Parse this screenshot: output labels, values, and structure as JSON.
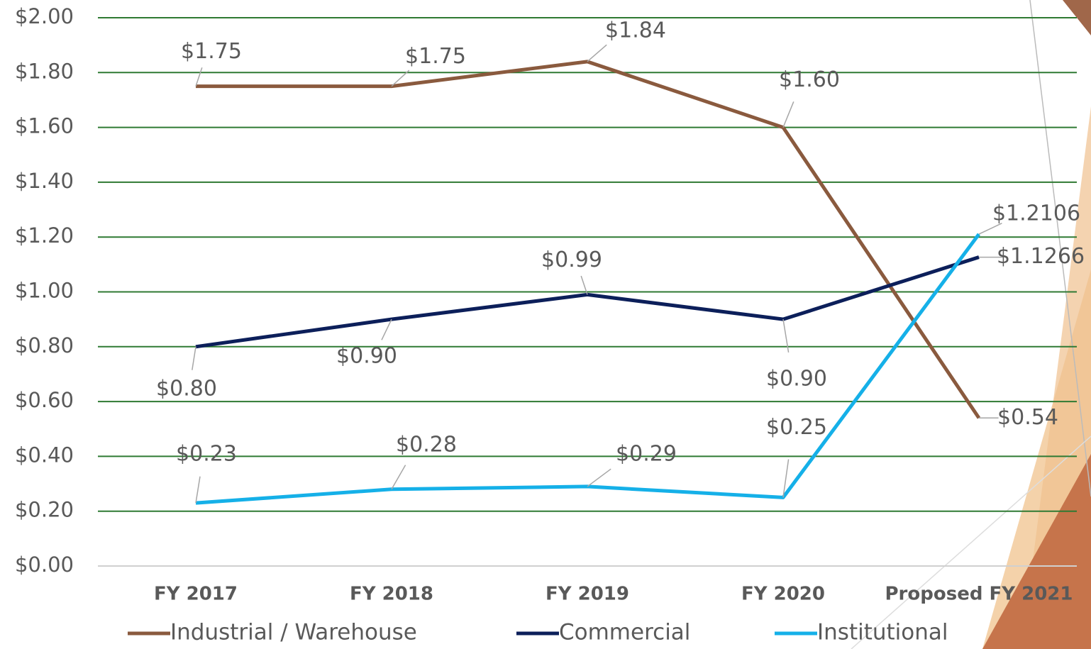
{
  "chart_data": {
    "type": "line",
    "categories": [
      "FY 2017",
      "FY 2018",
      "FY 2019",
      "FY 2020",
      "Proposed FY 2021"
    ],
    "series": [
      {
        "name": "Industrial / Warehouse",
        "color": "#8a5a3e",
        "values": [
          1.75,
          1.75,
          1.84,
          1.6,
          0.54
        ],
        "value_labels": [
          "$1.75",
          "$1.75",
          "$1.84",
          "$1.60",
          "$0.54"
        ]
      },
      {
        "name": "Commercial",
        "color": "#0c1f5a",
        "values": [
          0.8,
          0.9,
          0.99,
          0.9,
          1.1266
        ],
        "value_labels": [
          "$0.80",
          "$0.90",
          "$0.99",
          "$0.90",
          "$1.1266"
        ]
      },
      {
        "name": "Institutional",
        "color": "#15b0e8",
        "values": [
          0.23,
          0.28,
          0.29,
          0.25,
          1.2106
        ],
        "value_labels": [
          "$0.23",
          "$0.28",
          "$0.29",
          "$0.25",
          "$1.2106"
        ]
      }
    ],
    "ylim": [
      0,
      2
    ],
    "yticks": [
      {
        "value": 0,
        "label": "$0.00"
      },
      {
        "value": 0.2,
        "label": "$0.20"
      },
      {
        "value": 0.4,
        "label": "$0.40"
      },
      {
        "value": 0.6,
        "label": "$0.60"
      },
      {
        "value": 0.8,
        "label": "$0.80"
      },
      {
        "value": 1,
        "label": "$1.00"
      },
      {
        "value": 1.2,
        "label": "$1.20"
      },
      {
        "value": 1.4,
        "label": "$1.40"
      },
      {
        "value": 1.6,
        "label": "$1.60"
      },
      {
        "value": 1.8,
        "label": "$1.80"
      },
      {
        "value": 2,
        "label": "$2.00"
      }
    ],
    "grid": true,
    "grid_color": "#2f7a33",
    "legend": "bottom"
  }
}
